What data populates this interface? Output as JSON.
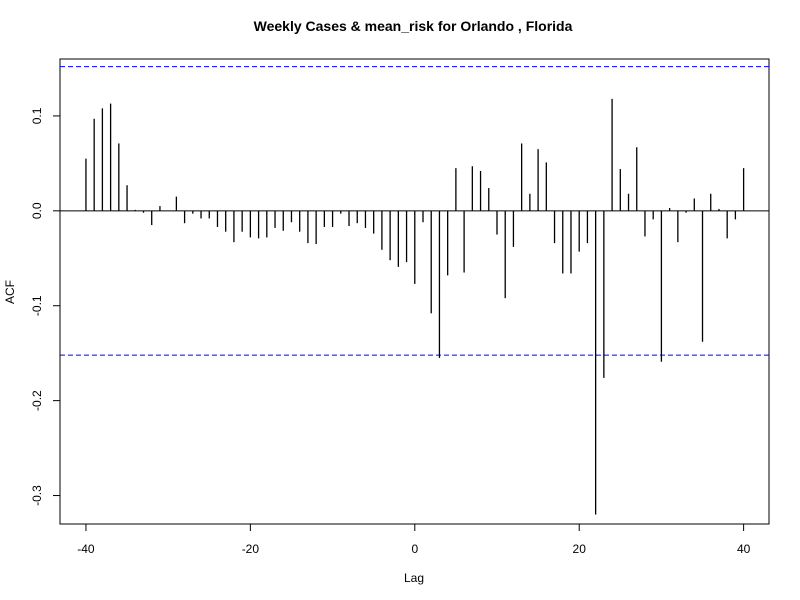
{
  "chart_data": {
    "type": "bar",
    "title": "Weekly Cases & mean_risk for Orlando , Florida",
    "xlabel": "Lag",
    "ylabel": "ACF",
    "xlim": [
      -40,
      40
    ],
    "ylim": [
      -0.33,
      0.16
    ],
    "xticks": [
      -40,
      -20,
      0,
      20,
      40
    ],
    "yticks": [
      -0.3,
      -0.2,
      -0.1,
      0.0,
      0.1
    ],
    "ytick_labels": [
      "-0.3",
      "-0.2",
      "-0.1",
      "0.0",
      "0.1"
    ],
    "confidence_bound": 0.152,
    "colors": {
      "bars": "#000000",
      "confidence_lines": "#0000ff",
      "frame": "#000000"
    },
    "x": [
      -40,
      -39,
      -38,
      -37,
      -36,
      -35,
      -34,
      -33,
      -32,
      -31,
      -30,
      -29,
      -28,
      -27,
      -26,
      -25,
      -24,
      -23,
      -22,
      -21,
      -20,
      -19,
      -18,
      -17,
      -16,
      -15,
      -14,
      -13,
      -12,
      -11,
      -10,
      -9,
      -8,
      -7,
      -6,
      -5,
      -4,
      -3,
      -2,
      -1,
      0,
      1,
      2,
      3,
      4,
      5,
      6,
      7,
      8,
      9,
      10,
      11,
      12,
      13,
      14,
      15,
      16,
      17,
      18,
      19,
      20,
      21,
      22,
      23,
      24,
      25,
      26,
      27,
      28,
      29,
      30,
      31,
      32,
      33,
      34,
      35,
      36,
      37,
      38,
      39,
      40
    ],
    "values": [
      0.055,
      0.097,
      0.108,
      0.113,
      0.071,
      0.027,
      0.001,
      -0.002,
      -0.015,
      0.005,
      0.0,
      0.015,
      -0.013,
      -0.003,
      -0.008,
      -0.008,
      -0.017,
      -0.022,
      -0.033,
      -0.022,
      -0.028,
      -0.029,
      -0.028,
      -0.018,
      -0.021,
      -0.012,
      -0.022,
      -0.034,
      -0.035,
      -0.017,
      -0.017,
      -0.003,
      -0.016,
      -0.013,
      -0.018,
      -0.024,
      -0.041,
      -0.052,
      -0.059,
      -0.054,
      -0.077,
      -0.012,
      -0.108,
      -0.155,
      -0.068,
      0.045,
      -0.065,
      0.047,
      0.042,
      0.024,
      -0.025,
      -0.092,
      -0.038,
      0.071,
      0.018,
      0.065,
      0.051,
      -0.034,
      -0.066,
      -0.066,
      -0.043,
      -0.034,
      -0.32,
      -0.176,
      0.118,
      0.044,
      0.018,
      0.067,
      -0.027,
      -0.009,
      -0.159,
      0.003,
      -0.033,
      -0.002,
      0.013,
      -0.138,
      0.018,
      0.002,
      -0.029,
      -0.009,
      0.045
    ]
  }
}
